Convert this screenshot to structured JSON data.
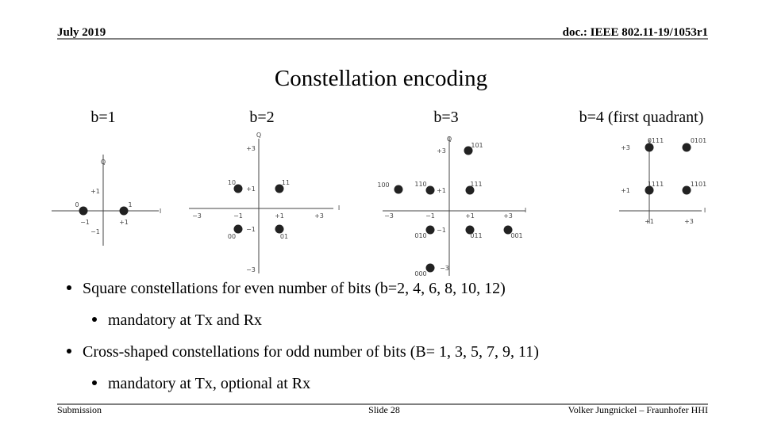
{
  "header": {
    "date": "July 2019",
    "doc": "doc.: IEEE 802.11-19/1053r1"
  },
  "title": "Constellation encoding",
  "diagrams": [
    {
      "caption": "b=1",
      "labels": [
        "Q",
        "+1",
        "0",
        "1",
        "I",
        "−1",
        "+1",
        "−1"
      ]
    },
    {
      "caption": "b=2",
      "labels": [
        "Q",
        "+3",
        "10",
        "11",
        "+1",
        "I",
        "−3",
        "−1",
        "+1",
        "+3",
        "00",
        "−1",
        "01",
        "−3"
      ]
    },
    {
      "caption": "b=3",
      "labels": [
        "Q",
        "+3",
        "101",
        "100",
        "110",
        "+1",
        "111",
        "I",
        "−3",
        "−1",
        "+1",
        "+3",
        "010",
        "−1",
        "011",
        "001",
        "−3",
        "000"
      ]
    },
    {
      "caption": "b=4 (first quadrant)",
      "labels": [
        "0111",
        "0101",
        "+3",
        "1111",
        "1101",
        "+1",
        "I",
        "+1",
        "+3"
      ]
    }
  ],
  "bullets": [
    {
      "text": "Square constellations for even number of bits (b=2, 4, 6, 8, 10, 12)",
      "sub": "mandatory at Tx and Rx"
    },
    {
      "text": "Cross-shaped constellations for odd number of bits (B= 1, 3, 5, 7, 9, 11)",
      "sub": "mandatory at Tx, optional at Rx"
    }
  ],
  "footer": {
    "left": "Submission",
    "center": "Slide 28",
    "right": "Volker Jungnickel – Fraunhofer HHI"
  }
}
